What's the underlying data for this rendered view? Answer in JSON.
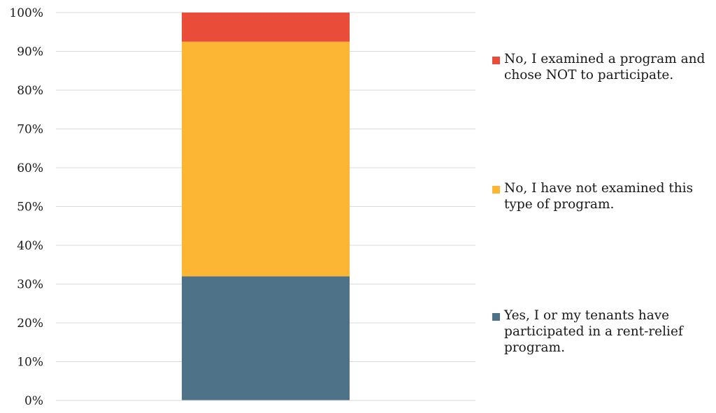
{
  "chart_data": {
    "type": "bar",
    "stacked": true,
    "percent": true,
    "categories": [
      ""
    ],
    "ylim": [
      0,
      100
    ],
    "yticks": [
      "0%",
      "10%",
      "20%",
      "30%",
      "40%",
      "50%",
      "60%",
      "70%",
      "80%",
      "90%",
      "100%"
    ],
    "grid": true,
    "legend_position": "right",
    "series": [
      {
        "name": "Yes, I or my tenants have participated in a rent-relief program.",
        "values": [
          32
        ],
        "color": "#4e7389"
      },
      {
        "name": "No, I have not examined this type of program.",
        "values": [
          60.5
        ],
        "color": "#fcb633"
      },
      {
        "name": "No, I examined a program and chose NOT to participate.",
        "values": [
          7.5
        ],
        "color": "#e94c39"
      }
    ]
  }
}
